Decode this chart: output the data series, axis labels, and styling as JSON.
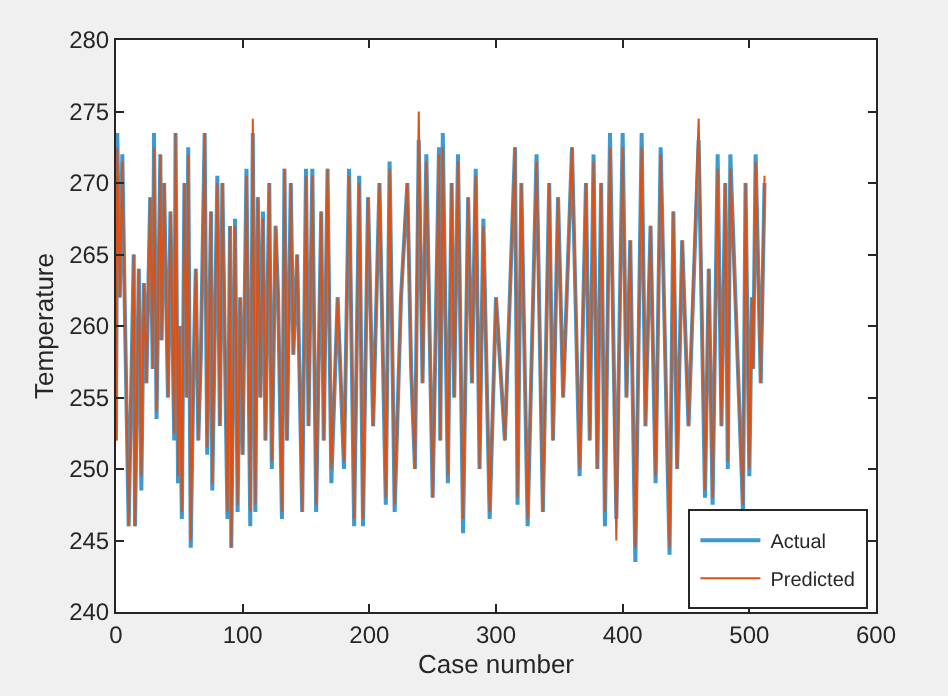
{
  "chart_data": {
    "type": "line",
    "xlabel": "Case number",
    "ylabel": "Temperature",
    "x": [
      0,
      1,
      3,
      5,
      7,
      10,
      14,
      15,
      18,
      20,
      22,
      24,
      27,
      29,
      30,
      32,
      35,
      36,
      38,
      41,
      43,
      46,
      47,
      49,
      50,
      52,
      54,
      56,
      57,
      59,
      61,
      63,
      65,
      67,
      70,
      72,
      75,
      76,
      80,
      82,
      84,
      88,
      90,
      91,
      94,
      96,
      98,
      100,
      103,
      106,
      108,
      110,
      112,
      114,
      116,
      118,
      121,
      123,
      126,
      128,
      131,
      133,
      135,
      138,
      140,
      143,
      147,
      150,
      152,
      155,
      158,
      162,
      164,
      167,
      170,
      175,
      180,
      184,
      188,
      192,
      195,
      199,
      203,
      208,
      213,
      216,
      220,
      225,
      230,
      233,
      236,
      239,
      242,
      245,
      250,
      255,
      256,
      258,
      262,
      265,
      267,
      270,
      274,
      278,
      281,
      284,
      287,
      290,
      295,
      300,
      307,
      315,
      317,
      320,
      325,
      332,
      337,
      342,
      345,
      349,
      353,
      360,
      366,
      371,
      374,
      377,
      380,
      383,
      386,
      390,
      395,
      400,
      403,
      406,
      410,
      415,
      418,
      422,
      426,
      430,
      437,
      440,
      443,
      447,
      452,
      460,
      465,
      468,
      471,
      475,
      478,
      481,
      483,
      485,
      495,
      497,
      500,
      502,
      503,
      505,
      509,
      512
    ],
    "series": [
      {
        "name": "Actual",
        "color": "#3d9ad1",
        "values": [
          252,
          273.5,
          262,
          272,
          261,
          246,
          265,
          246,
          264,
          248.5,
          263,
          256,
          269,
          257,
          273.5,
          253.5,
          272,
          259,
          270,
          255,
          268,
          252,
          273.5,
          249,
          260,
          246.5,
          270,
          255,
          272.5,
          244.5,
          256,
          264,
          252,
          258,
          273.5,
          251,
          268,
          248.5,
          270.5,
          253,
          270,
          246.5,
          267,
          244.5,
          267.5,
          247,
          262,
          251,
          271,
          246,
          273.5,
          247,
          269,
          255,
          268,
          252,
          270,
          250,
          267,
          262,
          246.5,
          271,
          252,
          270,
          258,
          265,
          247,
          271,
          253,
          271,
          247,
          268,
          252,
          271,
          249,
          262,
          250,
          271,
          246,
          270.5,
          246,
          269,
          253,
          270,
          247.5,
          271.5,
          247,
          262,
          270,
          257,
          250,
          273,
          256,
          272,
          248,
          272.5,
          252,
          273.5,
          249,
          270,
          255,
          272,
          245.5,
          269,
          256,
          271,
          250,
          267.5,
          246.5,
          262,
          252,
          272.5,
          247.5,
          270,
          246,
          272,
          247,
          270,
          252,
          269,
          255,
          272.5,
          249.5,
          270,
          252,
          272,
          250,
          270,
          246,
          273.5,
          246.5,
          273.5,
          255,
          266,
          243.5,
          273.5,
          253,
          267,
          249,
          272.5,
          244,
          268,
          250,
          266,
          253,
          273,
          248,
          264,
          247.5,
          272,
          253,
          270,
          250,
          272,
          247,
          270,
          249.5,
          262,
          257,
          272,
          256,
          270
        ]
      },
      {
        "name": "Predicted",
        "color": "#d95319",
        "values": [
          252,
          272.5,
          262,
          271.5,
          261,
          246,
          265,
          246,
          264,
          249.5,
          263,
          256,
          269,
          257,
          272.5,
          254,
          272,
          259,
          270,
          255,
          268,
          252.5,
          273.5,
          249.5,
          260,
          247,
          270,
          255,
          272,
          245,
          256,
          264,
          252,
          258,
          273.5,
          251.5,
          268,
          249,
          270,
          253,
          270,
          247,
          267,
          244.5,
          267,
          247.5,
          262,
          251,
          270.5,
          247,
          274.5,
          247.5,
          269,
          255,
          267.5,
          252,
          270,
          250.5,
          267,
          262,
          247,
          271,
          252,
          270,
          258,
          265,
          247,
          270.5,
          253,
          270.5,
          247.5,
          268,
          252,
          271,
          250,
          262,
          250.5,
          270.5,
          246.5,
          270,
          246.5,
          269,
          253,
          270,
          248,
          271,
          247.5,
          262,
          270,
          257,
          250,
          275,
          256,
          271.5,
          248,
          272,
          252,
          272.5,
          249.5,
          270,
          255,
          271.5,
          246.5,
          269,
          256,
          270.5,
          250,
          267,
          247,
          262,
          252,
          272.5,
          248,
          270,
          246.5,
          271.5,
          247,
          270,
          252,
          269,
          255,
          272.5,
          250,
          270,
          252,
          271.5,
          250,
          270,
          247,
          272.5,
          245,
          272.5,
          255,
          266,
          244.5,
          272.5,
          253,
          267,
          249.5,
          272,
          244.5,
          268,
          250,
          266,
          253,
          274.5,
          248.5,
          264,
          248,
          271,
          253,
          270,
          250.5,
          271,
          247.5,
          270,
          250,
          262,
          257,
          271.5,
          256,
          270.5
        ]
      }
    ],
    "xlim": [
      0,
      600
    ],
    "xticks": [
      0,
      100,
      200,
      300,
      400,
      500,
      600
    ],
    "ylim": [
      240,
      280
    ],
    "yticks": [
      240,
      245,
      250,
      255,
      260,
      265,
      270,
      275,
      280
    ],
    "legend": "bottom right",
    "marker": "none",
    "line_style": "solid"
  }
}
